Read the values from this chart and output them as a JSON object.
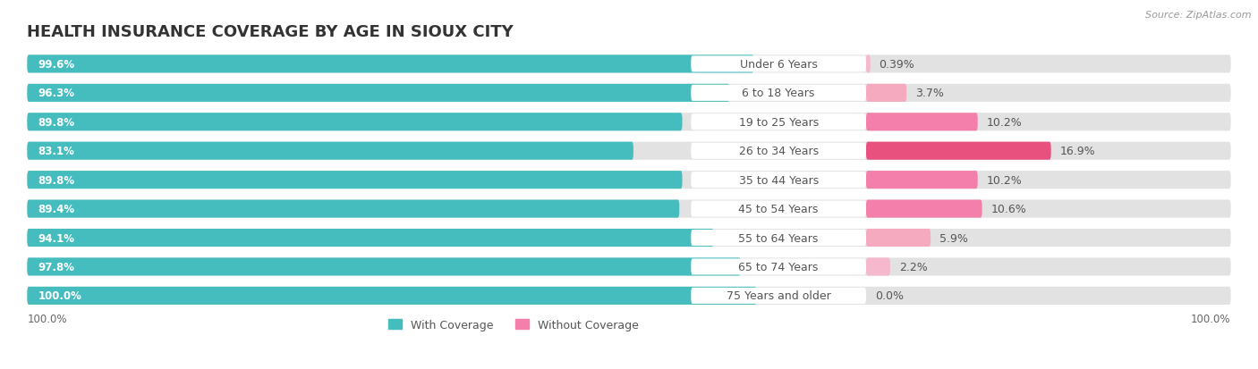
{
  "title": "HEALTH INSURANCE COVERAGE BY AGE IN SIOUX CITY",
  "source": "Source: ZipAtlas.com",
  "categories": [
    "Under 6 Years",
    "6 to 18 Years",
    "19 to 25 Years",
    "26 to 34 Years",
    "35 to 44 Years",
    "45 to 54 Years",
    "55 to 64 Years",
    "65 to 74 Years",
    "75 Years and older"
  ],
  "with_coverage": [
    99.6,
    96.3,
    89.8,
    83.1,
    89.8,
    89.4,
    94.1,
    97.8,
    100.0
  ],
  "without_coverage": [
    0.39,
    3.7,
    10.2,
    16.9,
    10.2,
    10.6,
    5.9,
    2.2,
    0.0
  ],
  "with_coverage_labels": [
    "99.6%",
    "96.3%",
    "89.8%",
    "83.1%",
    "89.8%",
    "89.4%",
    "94.1%",
    "97.8%",
    "100.0%"
  ],
  "without_coverage_labels": [
    "0.39%",
    "3.7%",
    "10.2%",
    "16.9%",
    "10.2%",
    "10.6%",
    "5.9%",
    "2.2%",
    "0.0%"
  ],
  "color_with": "#45bcbe",
  "color_without": [
    "#f5b8cc",
    "#f5aac0",
    "#f47faa",
    "#e8517e",
    "#f47faa",
    "#f47faa",
    "#f5aac0",
    "#f5b8cc",
    "#f5c4d4"
  ],
  "background_bar": "#e2e2e2",
  "background_fig": "#ffffff",
  "title_fontsize": 13,
  "bar_label_fontsize": 8.5,
  "cat_label_fontsize": 9,
  "woc_label_fontsize": 9,
  "legend_fontsize": 9,
  "source_fontsize": 8,
  "bottom_label": "100.0%"
}
